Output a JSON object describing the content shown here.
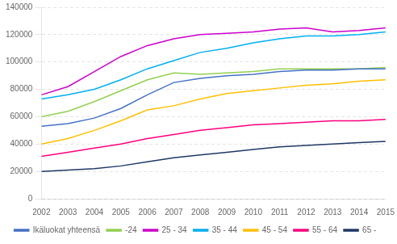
{
  "chart_data": {
    "type": "line",
    "x": [
      2002,
      2003,
      2004,
      2005,
      2006,
      2007,
      2008,
      2009,
      2010,
      2011,
      2012,
      2013,
      2014,
      2015
    ],
    "series": [
      {
        "name": "Ikäluokat yhteensä",
        "color": "#4472C4",
        "values": [
          53000,
          55000,
          59000,
          66000,
          76000,
          85000,
          88000,
          90000,
          91000,
          93000,
          94000,
          94000,
          95000,
          95000
        ]
      },
      {
        "name": "-24",
        "color": "#92D050",
        "values": [
          60000,
          64000,
          71000,
          79000,
          87000,
          92000,
          91000,
          92000,
          93000,
          95000,
          95000,
          95000,
          95000,
          96000
        ]
      },
      {
        "name": "25 - 34",
        "color": "#CC00CC",
        "values": [
          76000,
          82000,
          93000,
          104000,
          112000,
          117000,
          120000,
          121000,
          122000,
          124000,
          125000,
          122000,
          123000,
          125000
        ]
      },
      {
        "name": "35 - 44",
        "color": "#00B0F0",
        "values": [
          73000,
          76000,
          80000,
          87000,
          95000,
          101000,
          107000,
          110000,
          114000,
          117000,
          119000,
          119000,
          120000,
          122000
        ]
      },
      {
        "name": "45 - 54",
        "color": "#FFC000",
        "values": [
          40000,
          44000,
          50000,
          57000,
          65000,
          68000,
          73000,
          77000,
          79000,
          81000,
          83000,
          84000,
          86000,
          87000
        ]
      },
      {
        "name": "55 - 64",
        "color": "#FF007F",
        "values": [
          31000,
          34000,
          37000,
          40000,
          44000,
          47000,
          50000,
          52000,
          54000,
          55000,
          56000,
          57000,
          57000,
          58000
        ]
      },
      {
        "name": "65 -",
        "color": "#1F3864",
        "values": [
          20000,
          21000,
          22000,
          24000,
          27000,
          30000,
          32000,
          34000,
          36000,
          38000,
          39000,
          40000,
          41000,
          42000
        ]
      }
    ],
    "xlim": [
      2002,
      2015
    ],
    "xticks": [
      2002,
      2003,
      2004,
      2005,
      2006,
      2007,
      2008,
      2009,
      2010,
      2011,
      2012,
      2013,
      2014,
      2015
    ],
    "ylim": [
      0,
      140000
    ],
    "yticks": [
      0,
      20000,
      40000,
      60000,
      80000,
      100000,
      120000,
      140000
    ],
    "grid": "y",
    "legend": "bottom"
  }
}
